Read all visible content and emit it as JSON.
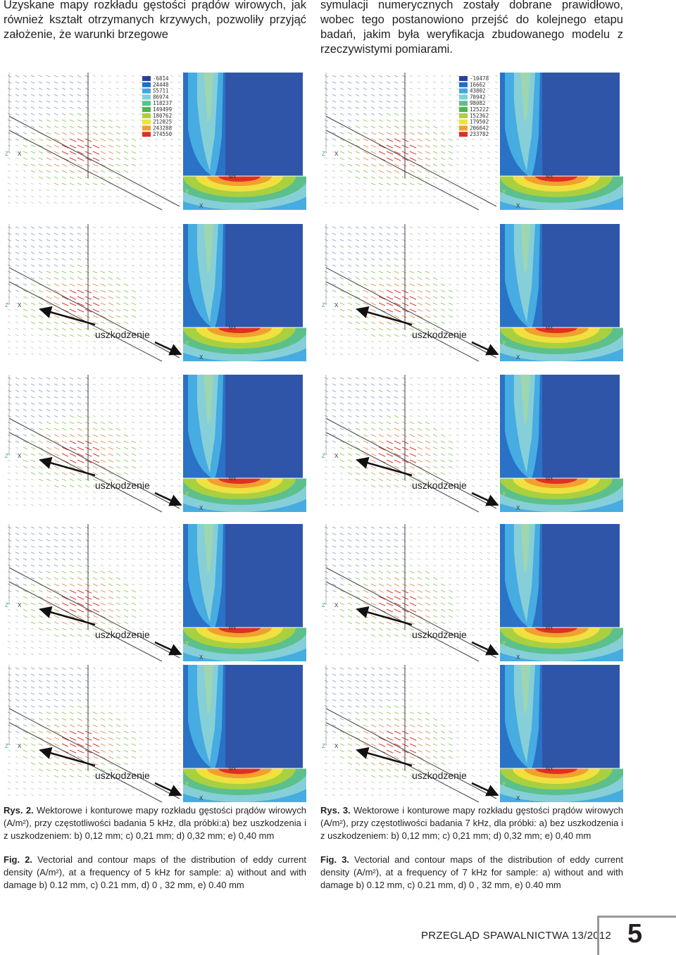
{
  "body": {
    "left_paragraph": "Uzyskane mapy rozkładu gęstości prądów wirowych, jak również kształt otrzymanych krzywych, pozwoliły przyjąć założenie, że warunki brzegowe",
    "right_paragraph": "symulacji numerycznych zostały dobrane prawidłowo, wobec tego postanowiono przejść do kolejnego etapu badań, jakim była weryfikacja zbudowanego modelu z rzeczywistymi pomiarami."
  },
  "figures": [
    {
      "legend": [
        -6814,
        24448,
        55711,
        86974,
        118237,
        149499,
        180762,
        212025,
        243288,
        274550
      ]
    },
    {
      "legend": [
        -10478,
        16662,
        43802,
        70942,
        98082,
        125222,
        152362,
        179502,
        206642,
        233782
      ]
    }
  ],
  "plot_labels": {
    "damage": "uszkodzenie",
    "mx": "MX",
    "x": "X",
    "y": "Y",
    "z": "Z"
  },
  "captions": {
    "fig2_pl": {
      "label": "Rys. 2.",
      "text": "Wektorowe i konturowe mapy rozkładu gęstości prądów wirowych (A/m²), przy częstotliwości badania 5 kHz, dla próbki:a) bez uszkodzenia i z uszkodzeniem: b) 0,12 mm; c) 0,21 mm; d) 0,32 mm; e) 0,40 mm"
    },
    "fig2_en": {
      "label": "Fig. 2.",
      "text": "Vectorial and contour maps of the distribution of eddy current density (A/m²), at a frequency of 5 kHz for sample: a) without and with damage b) 0.12 mm, c) 0.21 mm, d) 0 , 32 mm, e) 0.40 mm"
    },
    "fig3_pl": {
      "label": "Rys. 3.",
      "text": "Wektorowe i konturowe mapy rozkładu gęstości prądów wirowych (A/m²), przy częstotliwości badania 7 kHz, dla próbki: a) bez uszkodzenia i z uszkodzeniem: b) 0,12 mm; c) 0,21 mm; d) 0,32 mm; e) 0,40 mm"
    },
    "fig3_en": {
      "label": "Fig. 3.",
      "text": "Vectorial and contour maps of the distribution of eddy current density (A/m²), at a frequency of 7 kHz for sample: a) without and with damage b) 0.12 mm, c) 0.21 mm, d) 0 , 32 mm, e) 0.40 mm"
    }
  },
  "footer": {
    "journal": "PRZEGLĄD SPAWALNICTWA 13/2012",
    "page": "5"
  }
}
